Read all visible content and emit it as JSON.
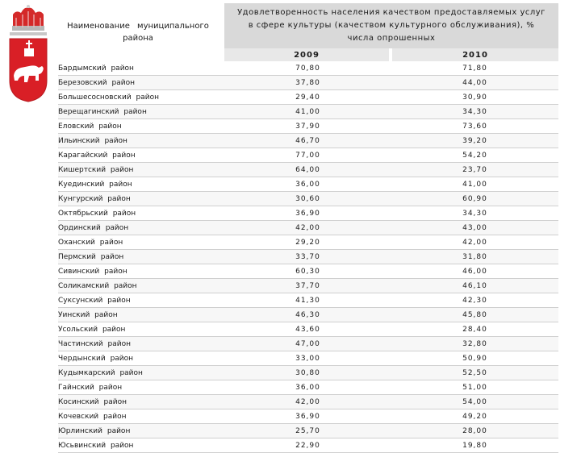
{
  "header": {
    "district_col": "Наименование муниципального района",
    "indicator_col": "Удовлетворенность населения качеством предоставляемых услуг в сфере культуры (качеством культурного обслуживания), % числа опрошенных",
    "years": [
      "2009",
      "2010"
    ]
  },
  "rows": [
    {
      "name": "Бардымский район",
      "v2009": "70,80",
      "v2010": "71,80"
    },
    {
      "name": "Березовский район",
      "v2009": "37,80",
      "v2010": "44,00"
    },
    {
      "name": "Большесосновский район",
      "v2009": "29,40",
      "v2010": "30,90"
    },
    {
      "name": "Верещагинский район",
      "v2009": "41,00",
      "v2010": "34,30"
    },
    {
      "name": "Еловский район",
      "v2009": "37,90",
      "v2010": "73,60"
    },
    {
      "name": "Ильинский район",
      "v2009": "46,70",
      "v2010": "39,20"
    },
    {
      "name": "Карагайский район",
      "v2009": "77,00",
      "v2010": "54,20"
    },
    {
      "name": "Кишертский район",
      "v2009": "64,00",
      "v2010": "23,70"
    },
    {
      "name": "Куединский район",
      "v2009": "36,00",
      "v2010": "41,00"
    },
    {
      "name": "Кунгурский район",
      "v2009": "30,60",
      "v2010": "60,90"
    },
    {
      "name": "Октябрьский район",
      "v2009": "36,90",
      "v2010": "34,30"
    },
    {
      "name": "Ординский район",
      "v2009": "42,00",
      "v2010": "43,00"
    },
    {
      "name": "Оханский район",
      "v2009": "29,20",
      "v2010": "42,00"
    },
    {
      "name": "Пермский район",
      "v2009": "33,70",
      "v2010": "31,80"
    },
    {
      "name": "Сивинский район",
      "v2009": "60,30",
      "v2010": "46,00"
    },
    {
      "name": "Соликамский район",
      "v2009": "37,70",
      "v2010": "46,10"
    },
    {
      "name": "Суксунский район",
      "v2009": "41,30",
      "v2010": "42,30"
    },
    {
      "name": "Уинский район",
      "v2009": "46,30",
      "v2010": "45,80"
    },
    {
      "name": "Усольский район",
      "v2009": "43,60",
      "v2010": "28,40"
    },
    {
      "name": "Частинский район",
      "v2009": "47,00",
      "v2010": "32,80"
    },
    {
      "name": "Чердынский район",
      "v2009": "33,00",
      "v2010": "50,90"
    },
    {
      "name": "Кудымкарский район",
      "v2009": "30,80",
      "v2010": "52,50"
    },
    {
      "name": "Гайнский район",
      "v2009": "36,00",
      "v2010": "51,00"
    },
    {
      "name": "Косинский район",
      "v2009": "42,00",
      "v2010": "54,00"
    },
    {
      "name": "Кочевский район",
      "v2009": "36,90",
      "v2010": "49,20"
    },
    {
      "name": "Юрлинский район",
      "v2009": "25,70",
      "v2010": "28,00"
    },
    {
      "name": "Юсьвинский район",
      "v2009": "22,90",
      "v2010": "19,80"
    }
  ],
  "colors": {
    "crown": "#d42a2a",
    "shield": "#d91f26",
    "bear": "#ffffff"
  }
}
